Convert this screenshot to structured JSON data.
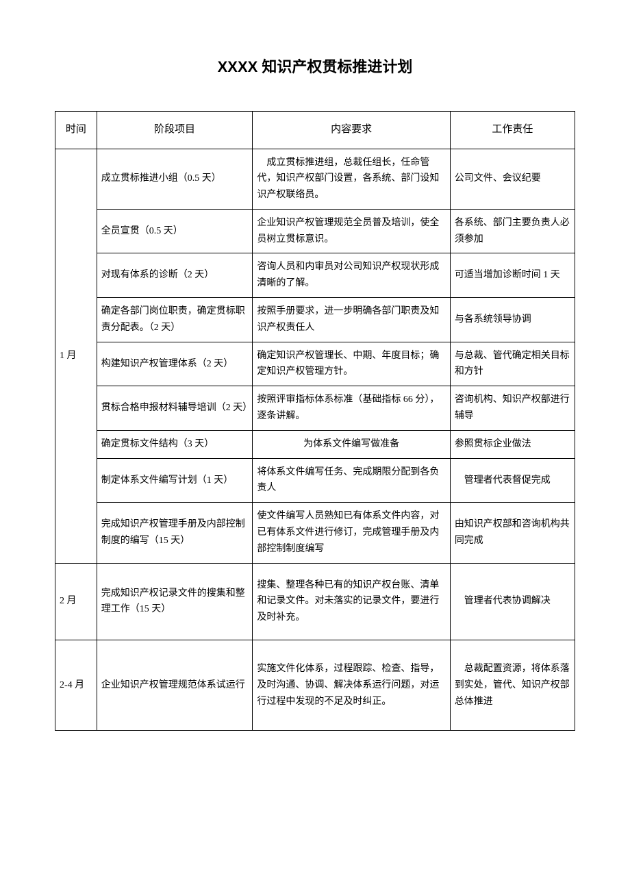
{
  "title": "XXXX 知识产权贯标推进计划",
  "headers": {
    "time": "时间",
    "stage": "阶段项目",
    "content": "内容要求",
    "responsibility": "工作责任"
  },
  "rows": [
    {
      "time": "1 月",
      "rowspan": 9,
      "stage": "成立贯标推进小组（0.5 天）",
      "content": "　成立贯标推进组，总裁任组长，任命管代，知识产权部门设置，各系统、部门设知识产权联络员。",
      "responsibility": "公司文件、会议纪要"
    },
    {
      "stage": "全员宣贯（0.5 天）",
      "content": "企业知识产权管理规范全员普及培训，使全员树立贯标意识。",
      "responsibility": "各系统、部门主要负责人必须参加"
    },
    {
      "stage": "对现有体系的诊断（2 天）",
      "content": "咨询人员和内审员对公司知识产权现状形成清晰的了解。",
      "responsibility": "可适当增加诊断时间 1 天"
    },
    {
      "stage": "确定各部门岗位职责，确定贯标职责分配表。（2 天）",
      "content": "按照手册要求，进一步明确各部门职责及知识产权责任人",
      "responsibility": "与各系统领导协调"
    },
    {
      "stage": "构建知识产权管理体系（2 天）",
      "content": "确定知识产权管理长、中期、年度目标；确定知识产权管理方针。",
      "responsibility": "与总裁、管代确定相关目标和方针"
    },
    {
      "stage": "贯标合格申报材料辅导培训（2 天）",
      "content": "按照评审指标体系标准（基础指标 66 分），逐条讲解。",
      "responsibility": "咨询机构、知识产权部进行辅导"
    },
    {
      "stage": "确定贯标文件结构（3 天）",
      "content": "为体系文件编写做准备",
      "contentCenter": true,
      "responsibility": "参照贯标企业做法"
    },
    {
      "stage": "制定体系文件编写计划（1 天）",
      "content": "将体系文件编写任务、完成期限分配到各负责人",
      "responsibility": "　管理者代表督促完成"
    },
    {
      "stage": "完成知识产权管理手册及内部控制制度的编写（15 天）",
      "content": "使文件编写人员熟知已有体系文件内容，对已有体系文件进行修订，完成管理手册及内部控制制度编写",
      "responsibility": "由知识产权部和咨询机构共同完成"
    },
    {
      "time": "2 月",
      "rowspan": 1,
      "stage": "完成知识产权记录文件的搜集和整理工作（15 天）",
      "content": "搜集、整理各种已有的知识产权台账、清单和记录文件。对未落实的记录文件，要进行及时补充。",
      "responsibility": "　管理者代表协调解决",
      "tall": true
    },
    {
      "time": "2-4 月",
      "rowspan": 1,
      "stage": "企业知识产权管理规范体系试运行",
      "content": "实施文件化体系，过程跟踪、检查、指导，及时沟通、协调、解决体系运行问题，对运行过程中发现的不足及时纠正。",
      "responsibility": "　总裁配置资源，将体系落到实处，管代、知识产权部总体推进",
      "taller": true
    }
  ]
}
